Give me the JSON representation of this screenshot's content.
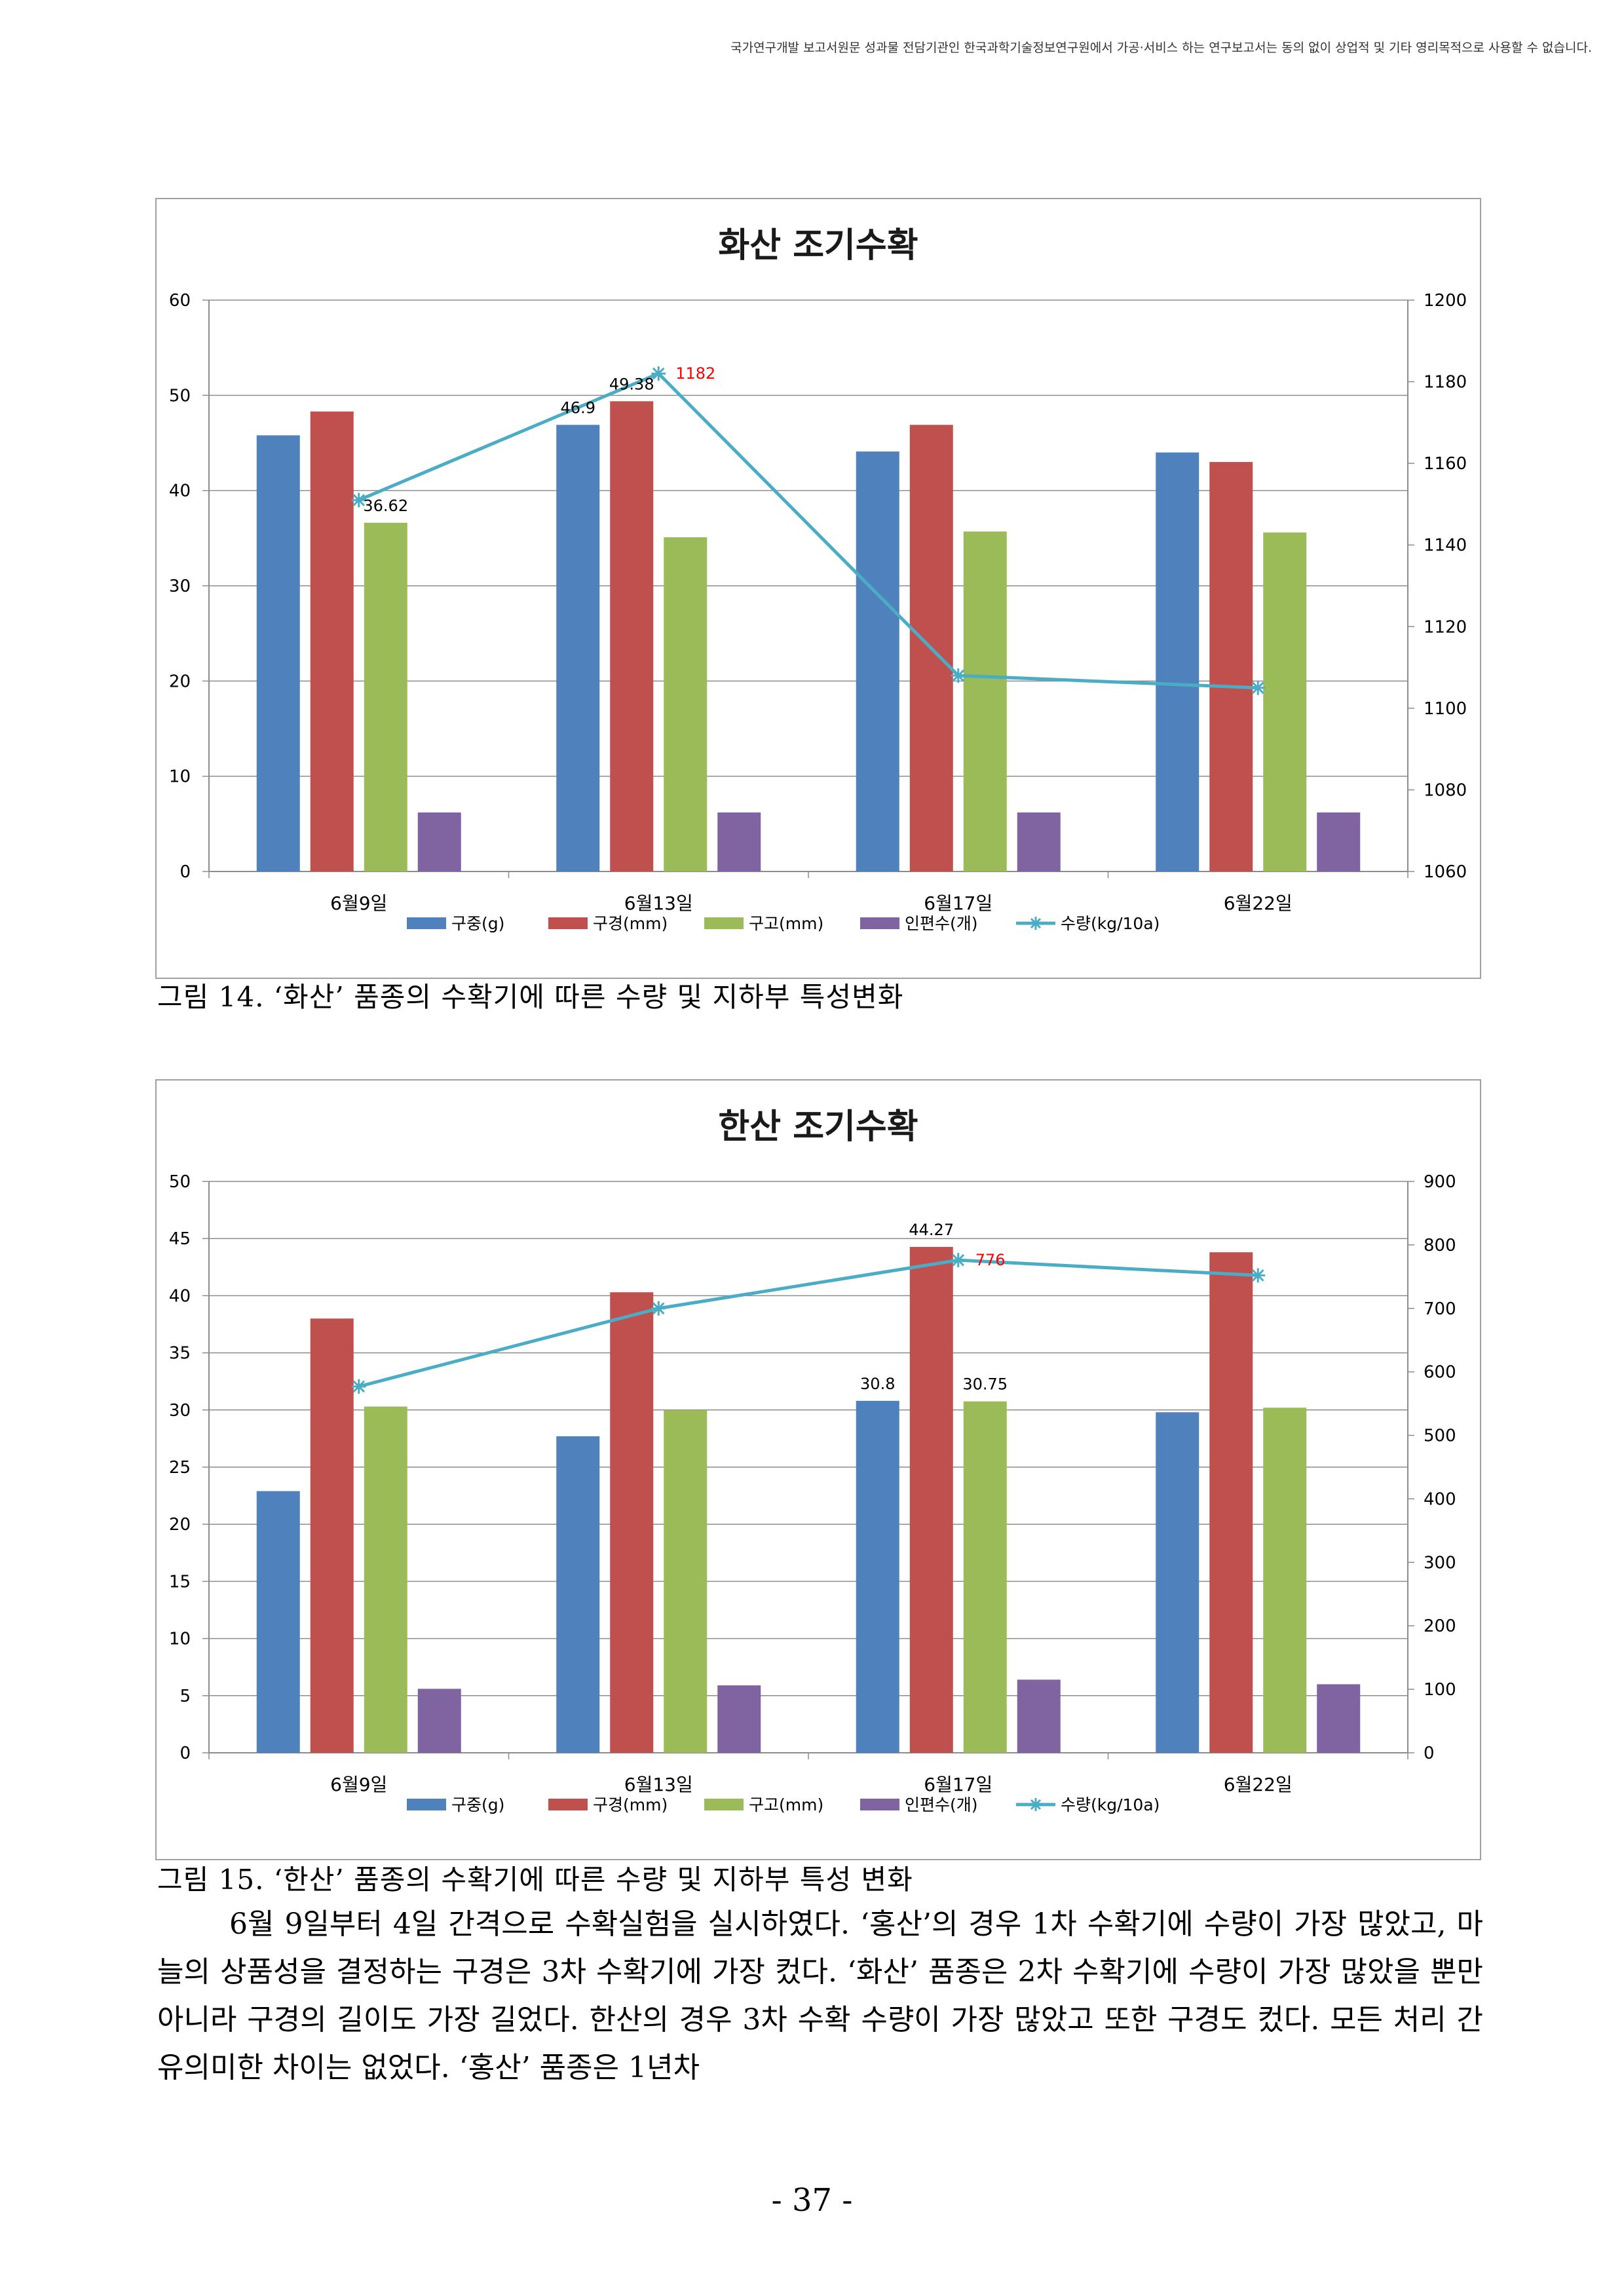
{
  "header_note": "국가연구개발 보고서원문 성과물 전담기관인 한국과학기술정보연구원에서 가공·서비스 하는 연구보고서는 동의 없이 상업적 및 기타 영리목적으로 사용할 수 없습니다.",
  "figures": [
    {
      "caption": "그림 14. ‘화산’ 품종의 수확기에 따른 수량 및 지하부 특성변화"
    },
    {
      "caption": "그림 15. ‘한산’ 품종의 수확기에 따른 수량 및 지하부 특성 변화"
    }
  ],
  "body_paragraph": "6월 9일부터 4일 간격으로 수확실험을 실시하였다. ‘홍산’의 경우 1차 수확기에 수량이 가장 많았고, 마늘의 상품성을 결정하는 구경은 3차 수확기에 가장 컸다. ‘화산’ 품종은 2차 수확기에 수량이 가장 많았을 뿐만 아니라 구경의 길이도 가장 길었다. 한산의 경우 3차 수확 수량이 가장 많았고 또한 구경도 컸다. 모든 처리 간 유의미한 차이는 없었다. ‘홍산’ 품종은 1년차",
  "page_number": "- 37 -",
  "colors": {
    "bulb_weight": "#4f81bd",
    "bulb_diameter": "#c0504d",
    "bulb_height": "#9bbb59",
    "clove_count": "#8064a2",
    "yield": "#4bacc6",
    "highlight_label": "#ff0000"
  },
  "chart_data": [
    {
      "type": "bar",
      "title": "화산 조기수확",
      "categories": [
        "6월9일",
        "6월13일",
        "6월17일",
        "6월22일"
      ],
      "ylim": [
        0,
        60
      ],
      "y_ticks": [
        "0",
        "10",
        "20",
        "30",
        "40",
        "50",
        "60"
      ],
      "y2lim": [
        1060,
        1200
      ],
      "y2_ticks": [
        "1060",
        "1080",
        "1100",
        "1120",
        "1140",
        "1160",
        "1180",
        "1200"
      ],
      "legend_position": "bottom",
      "grid": true,
      "series": [
        {
          "name": "구중(g)",
          "type": "bar",
          "axis": "left",
          "color": "#4f81bd",
          "values": [
            45.8,
            46.9,
            44.1,
            44.0
          ]
        },
        {
          "name": "구경(mm)",
          "type": "bar",
          "axis": "left",
          "color": "#c0504d",
          "values": [
            48.3,
            49.38,
            46.9,
            43.0
          ]
        },
        {
          "name": "구고(mm)",
          "type": "bar",
          "axis": "left",
          "color": "#9bbb59",
          "values": [
            36.62,
            35.1,
            35.7,
            35.6
          ]
        },
        {
          "name": "인편수(개)",
          "type": "bar",
          "axis": "left",
          "color": "#8064a2",
          "values": [
            6.2,
            6.2,
            6.2,
            6.2
          ]
        },
        {
          "name": "수량(kg/10a)",
          "type": "line",
          "axis": "right",
          "color": "#4bacc6",
          "values": [
            1151,
            1182,
            1108,
            1105
          ]
        }
      ],
      "data_labels": [
        {
          "series": 0,
          "index": 1,
          "text": "46.9"
        },
        {
          "series": 1,
          "index": 1,
          "text": "49.38"
        },
        {
          "series": 2,
          "index": 0,
          "text": "36.62"
        },
        {
          "series": 4,
          "index": 1,
          "text": "1182",
          "color": "#ff0000"
        }
      ]
    },
    {
      "type": "bar",
      "title": "한산 조기수확",
      "categories": [
        "6월9일",
        "6월13일",
        "6월17일",
        "6월22일"
      ],
      "ylim": [
        0,
        50
      ],
      "y_ticks": [
        "0",
        "5",
        "10",
        "15",
        "20",
        "25",
        "30",
        "35",
        "40",
        "45",
        "50"
      ],
      "y2lim": [
        0,
        900
      ],
      "y2_ticks": [
        "0",
        "100",
        "200",
        "300",
        "400",
        "500",
        "600",
        "700",
        "800",
        "900"
      ],
      "legend_position": "bottom",
      "grid": true,
      "series": [
        {
          "name": "구중(g)",
          "type": "bar",
          "axis": "left",
          "color": "#4f81bd",
          "values": [
            22.9,
            27.7,
            30.8,
            29.8
          ]
        },
        {
          "name": "구경(mm)",
          "type": "bar",
          "axis": "left",
          "color": "#c0504d",
          "values": [
            38.0,
            40.3,
            44.27,
            43.8
          ]
        },
        {
          "name": "구고(mm)",
          "type": "bar",
          "axis": "left",
          "color": "#9bbb59",
          "values": [
            30.3,
            30.0,
            30.75,
            30.2
          ]
        },
        {
          "name": "인편수(개)",
          "type": "bar",
          "axis": "left",
          "color": "#8064a2",
          "values": [
            5.6,
            5.9,
            6.4,
            6.0
          ]
        },
        {
          "name": "수량(kg/10a)",
          "type": "line",
          "axis": "right",
          "color": "#4bacc6",
          "values": [
            577,
            700,
            776,
            752
          ]
        }
      ],
      "data_labels": [
        {
          "series": 0,
          "index": 2,
          "text": "30.8"
        },
        {
          "series": 1,
          "index": 2,
          "text": "44.27"
        },
        {
          "series": 2,
          "index": 2,
          "text": "30.75"
        },
        {
          "series": 4,
          "index": 2,
          "text": "776",
          "color": "#ff0000"
        }
      ]
    }
  ]
}
